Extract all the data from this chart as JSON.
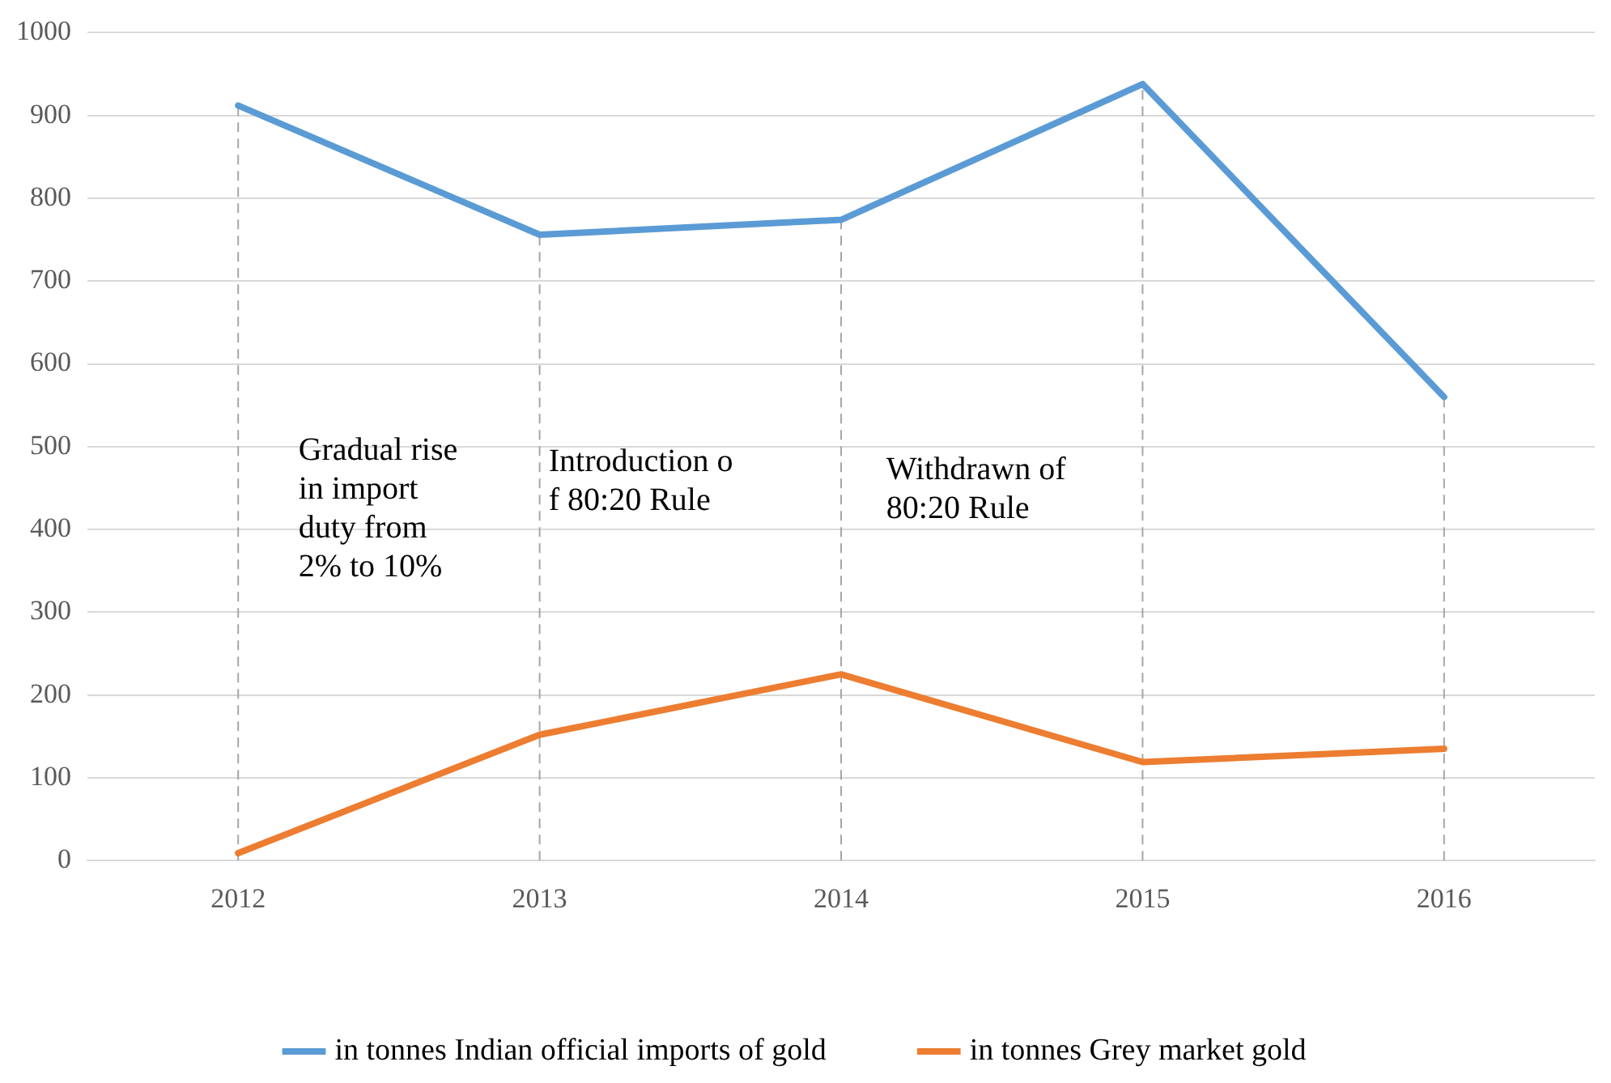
{
  "chart_data": {
    "type": "line",
    "categories": [
      "2012",
      "2013",
      "2014",
      "2015",
      "2016"
    ],
    "series": [
      {
        "name": "in tonnes Indian official imports of gold",
        "color": "#5b9bd5",
        "values": [
          912,
          756,
          774,
          938,
          560
        ]
      },
      {
        "name": "in tonnes Grey market gold",
        "color": "#ed7d31",
        "values": [
          9,
          152,
          225,
          119,
          135
        ]
      }
    ],
    "ylim": [
      0,
      1000
    ],
    "yticks": [
      0,
      100,
      200,
      300,
      400,
      500,
      600,
      700,
      800,
      900,
      1000
    ],
    "grid": "y",
    "legend": "bottom",
    "marker": "none",
    "line_style": "solid",
    "ref_lines": [
      {
        "axis": "x",
        "value": "2012",
        "color": "#a6a6a6",
        "line_style": "dashed"
      },
      {
        "axis": "x",
        "value": "2013",
        "color": "#a6a6a6",
        "line_style": "dashed"
      },
      {
        "axis": "x",
        "value": "2014",
        "color": "#a6a6a6",
        "line_style": "dashed"
      },
      {
        "axis": "x",
        "value": "2015",
        "color": "#a6a6a6",
        "line_style": "dashed"
      },
      {
        "axis": "x",
        "value": "2016",
        "color": "#a6a6a6",
        "line_style": "dashed"
      }
    ],
    "annotations": [
      "Gradual rise in import duty from 2% to 10%",
      "Introduction of 80:20 Rule",
      "Withdrawn of 80:20 Rule"
    ]
  }
}
